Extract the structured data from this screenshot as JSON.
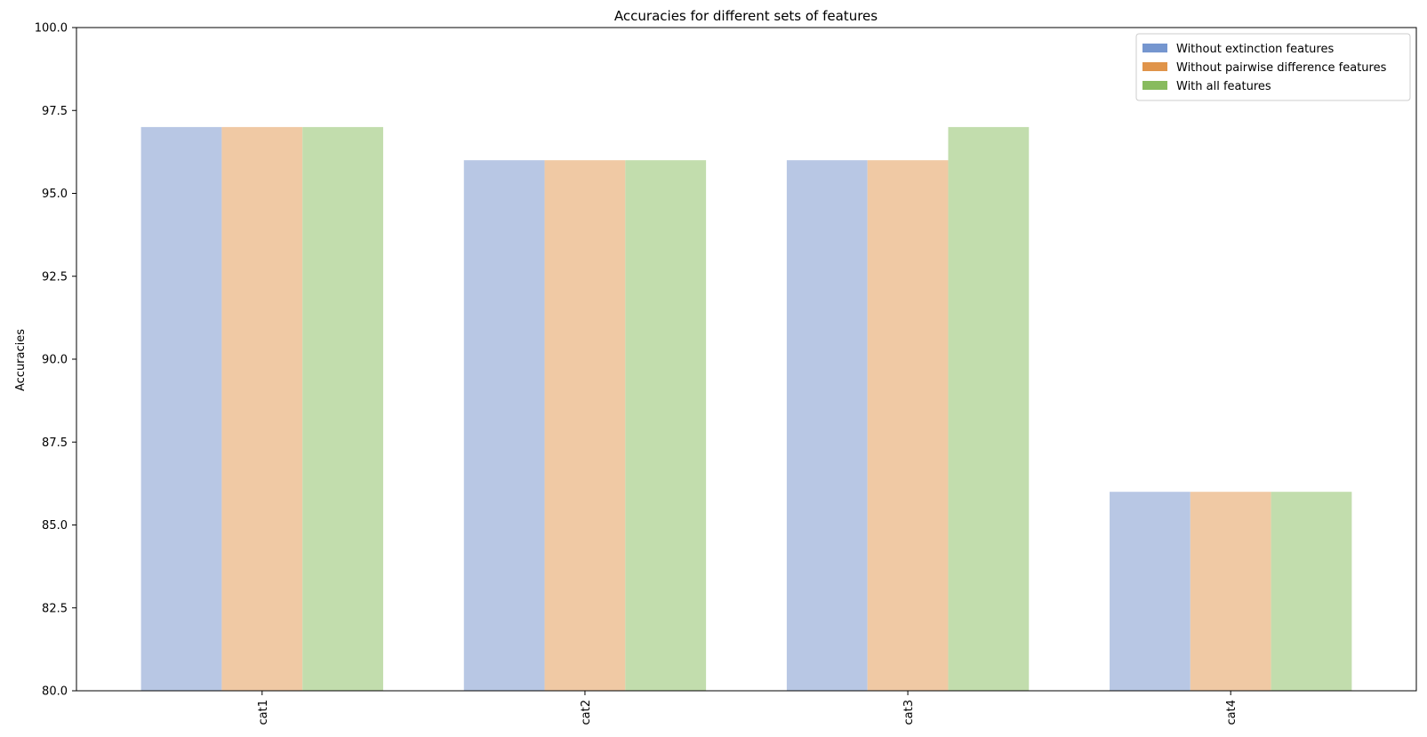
{
  "chart_data": {
    "type": "bar",
    "title": "Accuracies for different sets of features",
    "xlabel": "",
    "ylabel": "Accuracies",
    "categories": [
      "cat1",
      "cat2",
      "cat3",
      "cat4"
    ],
    "ylim": [
      80.0,
      100.0
    ],
    "yticks": [
      "80.0",
      "82.5",
      "85.0",
      "87.5",
      "90.0",
      "92.5",
      "95.0",
      "97.5",
      "100.0"
    ],
    "grid": false,
    "legend_position": "top-right",
    "series": [
      {
        "name": "Without extinction features",
        "values": [
          97,
          96,
          96,
          86
        ],
        "color": "#b8c7e4",
        "legend_color": "#7596cf"
      },
      {
        "name": "Without pairwise difference features",
        "values": [
          97,
          96,
          96,
          86
        ],
        "color": "#f0c9a4",
        "legend_color": "#e0944a"
      },
      {
        "name": "With all features",
        "values": [
          97,
          96,
          97,
          86
        ],
        "color": "#c2ddad",
        "legend_color": "#88bb5e"
      }
    ]
  }
}
